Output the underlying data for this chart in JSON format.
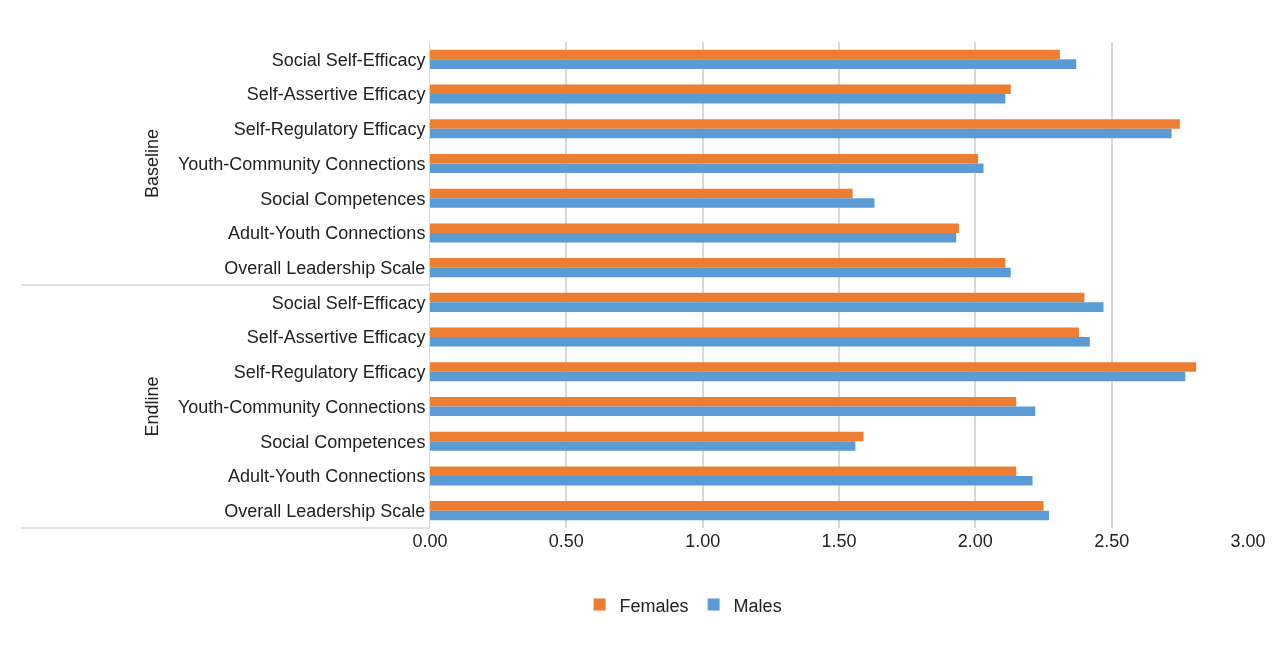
{
  "chart_data": [
    {
      "type": "bar",
      "orientation": "horizontal",
      "ylabel": "Baseline",
      "categories": [
        "Social Self-Efficacy",
        "Self-Assertive Efficacy",
        "Self-Regulatory Efficacy",
        "Youth-Community Connections",
        "Social Competences",
        "Adult-Youth Connections",
        "Overall Leadership Scale"
      ],
      "series": [
        {
          "name": "Females",
          "color": "#ed7d31",
          "values": [
            2.31,
            2.13,
            2.75,
            2.01,
            1.55,
            1.94,
            2.11
          ]
        },
        {
          "name": "Males",
          "color": "#5b9bd5",
          "values": [
            2.37,
            2.11,
            2.72,
            2.03,
            1.63,
            1.93,
            2.13
          ]
        }
      ],
      "xlim": [
        0,
        3
      ],
      "xticks": [
        {
          "value": 0,
          "label": null
        },
        {
          "value": 0.5,
          "label": null
        },
        {
          "value": 1,
          "label": null
        },
        {
          "value": 1.5,
          "label": null
        },
        {
          "value": 2,
          "label": null
        },
        {
          "value": 2.5,
          "label": null
        },
        {
          "value": 3,
          "label": null
        }
      ],
      "grid": "x",
      "tick_labels": "y",
      "legend": "bottom"
    },
    {
      "type": "bar",
      "orientation": "horizontal",
      "ylabel": "Endline",
      "categories": [
        "Social Self-Efficacy",
        "Self-Assertive Efficacy",
        "Self-Regulatory Efficacy",
        "Youth-Community Connections",
        "Social Competences",
        "Adult-Youth Connections",
        "Overall Leadership Scale"
      ],
      "series": [
        {
          "color": "#ed7d31",
          "values": [
            2.4,
            2.38,
            2.81,
            2.15,
            1.59,
            2.15,
            2.25
          ]
        },
        {
          "color": "#5b9bd5",
          "values": [
            2.47,
            2.42,
            2.77,
            2.22,
            1.56,
            2.21,
            2.27
          ]
        }
      ],
      "xlim": [
        0,
        3
      ],
      "xticks": [
        {
          "value": 0,
          "label": "0.00"
        },
        {
          "value": 0.5,
          "label": "0.50"
        },
        {
          "value": 1,
          "label": "1.00"
        },
        {
          "value": 1.5,
          "label": "1.50"
        },
        {
          "value": 2,
          "label": "2.00"
        },
        {
          "value": 2.5,
          "label": "2.50"
        },
        {
          "value": 3,
          "label": "3.00"
        }
      ],
      "grid": "x"
    }
  ]
}
